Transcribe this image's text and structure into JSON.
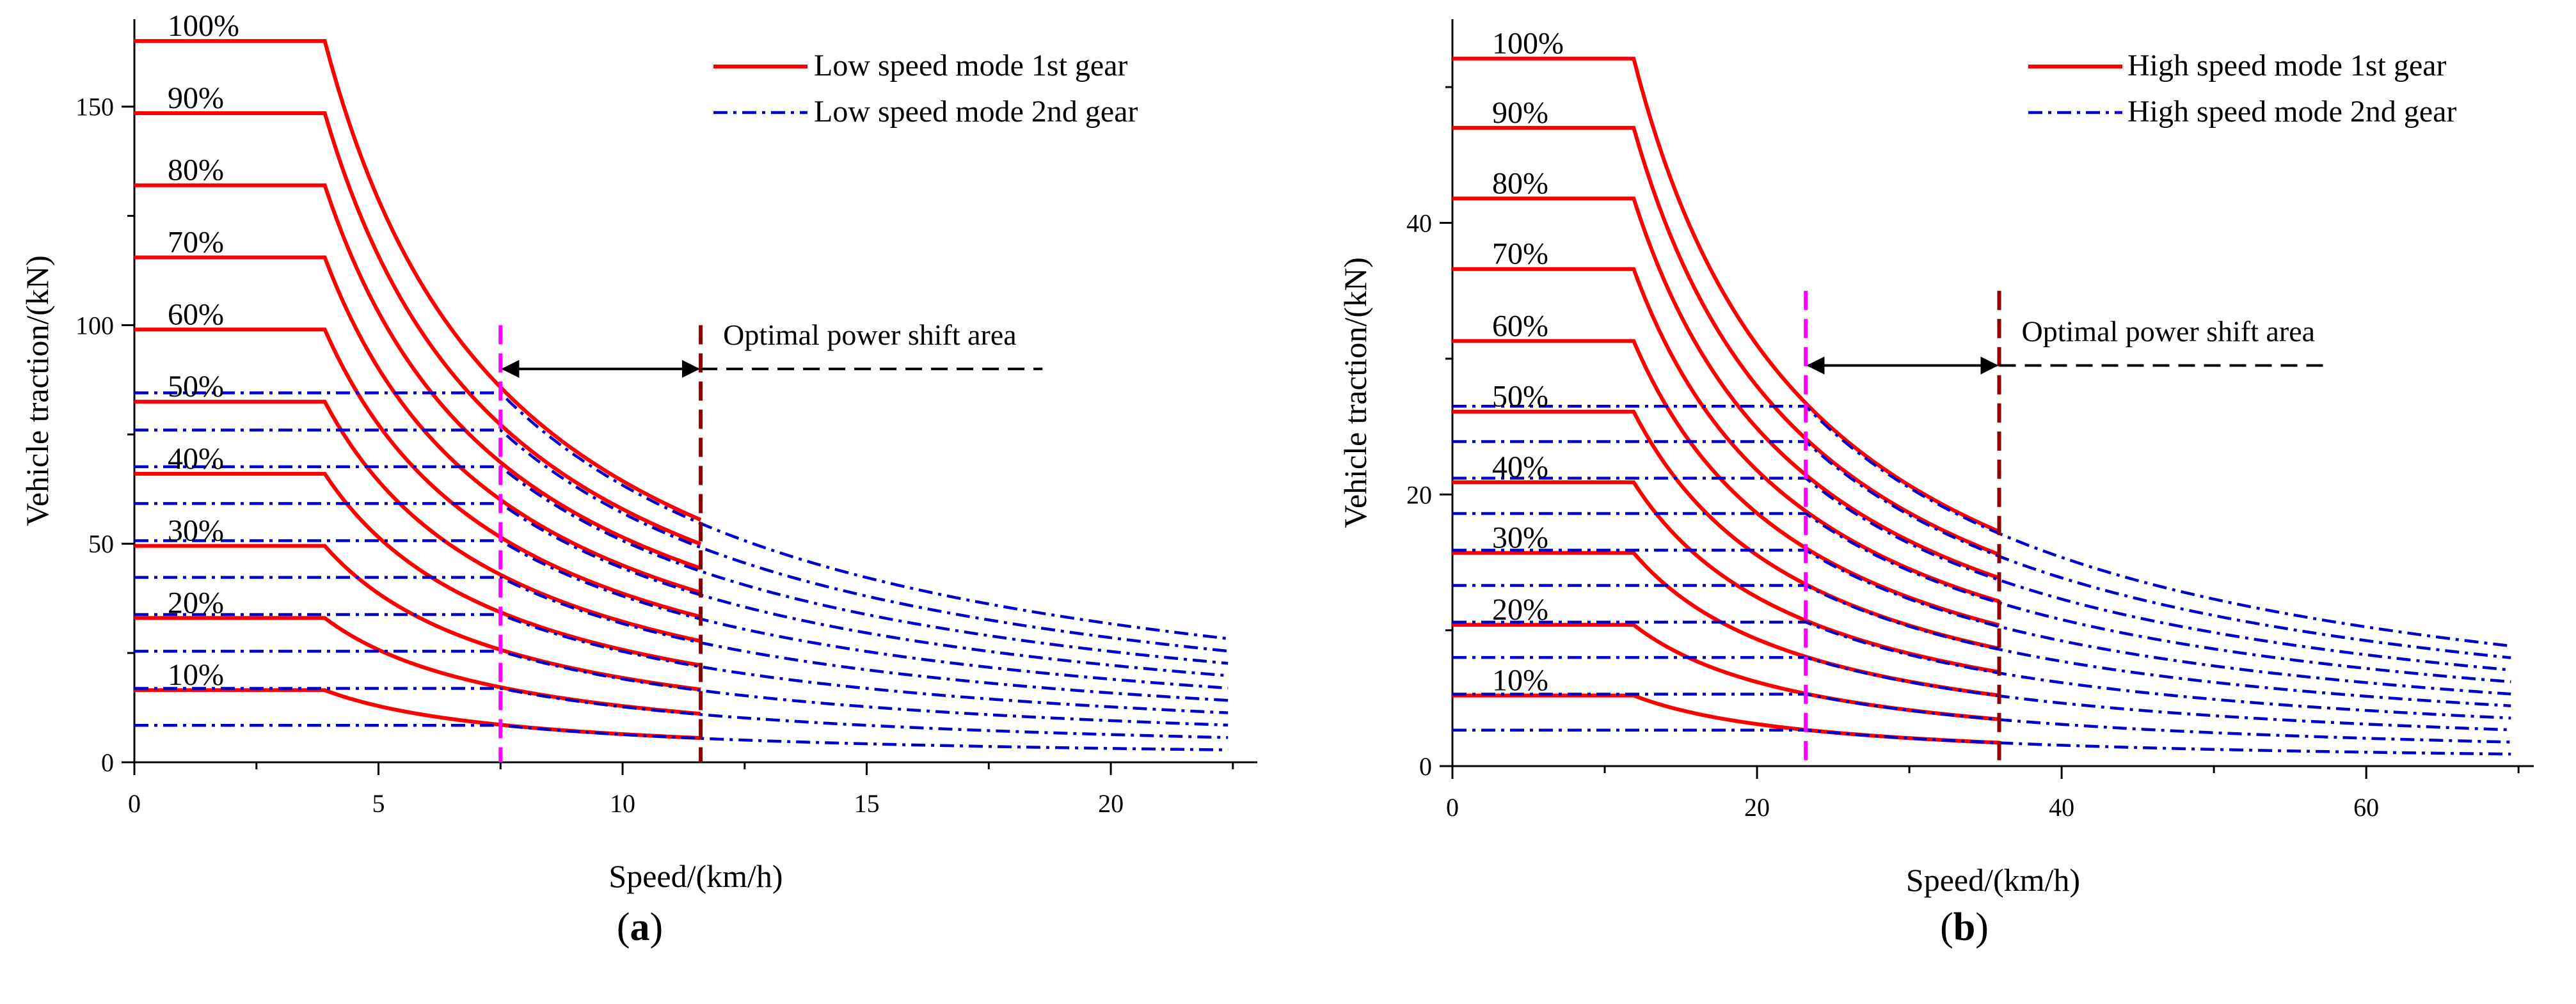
{
  "chart_data": [
    {
      "type": "line",
      "panel_label": "(a)",
      "panel_letter": "a",
      "xlabel": "Speed/(km/h)",
      "ylabel": "Vehicle traction/(kN)",
      "xlim": [
        0,
        23
      ],
      "ylim": [
        0,
        170
      ],
      "xticks": [
        0,
        5,
        10,
        15,
        20
      ],
      "yticks": [
        0,
        50,
        100,
        150
      ],
      "throttle_labels": [
        "100%",
        "90%",
        "80%",
        "70%",
        "60%",
        "50%",
        "40%",
        "30%",
        "20%",
        "10%"
      ],
      "legend": [
        "Low speed mode 1st gear",
        "Low speed mode 2nd gear"
      ],
      "series": [
        {
          "name": "Low speed mode 1st gear",
          "gear": 1,
          "color": "#ff0000",
          "style": "solid",
          "flat_end": 3.9,
          "x_end": 11.6,
          "max_traction": [
            165,
            148.5,
            132,
            115.5,
            99,
            82.5,
            66,
            49.5,
            33,
            16.5
          ]
        },
        {
          "name": "Low speed mode 2nd gear",
          "gear": 2,
          "color": "#0000cc",
          "style": "dashdot",
          "x_start": 0,
          "flat_end": 7.5,
          "x_end": 22.4,
          "max_traction": [
            84.5,
            76,
            67.6,
            59.2,
            50.7,
            42.3,
            33.8,
            25.4,
            16.9,
            8.45
          ]
        }
      ],
      "annotation": {
        "text": "Optimal power shift area",
        "x_start": 7.5,
        "x_end": 11.6,
        "y": 90,
        "dash_end": 18.6
      },
      "vlines": [
        {
          "x": 7.5,
          "color": "#ff00ff",
          "y_top": 100
        },
        {
          "x": 11.6,
          "color": "#8b0000",
          "y_top": 100
        }
      ],
      "legend_position": "top-right"
    },
    {
      "type": "line",
      "panel_label": "(b)",
      "panel_letter": "b",
      "xlabel": "Speed/(km/h)",
      "ylabel": "Vehicle traction/(kN)",
      "xlim": [
        0,
        71
      ],
      "ylim": [
        0,
        55
      ],
      "xticks": [
        0,
        20,
        40,
        60
      ],
      "yticks": [
        0,
        20,
        40
      ],
      "throttle_labels": [
        "100%",
        "90%",
        "80%",
        "70%",
        "60%",
        "50%",
        "40%",
        "30%",
        "20%",
        "10%"
      ],
      "legend": [
        "High speed mode 1st gear",
        "High speed mode 2nd gear"
      ],
      "series": [
        {
          "name": "High speed mode 1st gear",
          "gear": 1,
          "color": "#ff0000",
          "style": "solid",
          "flat_end": 11.9,
          "x_end": 35.9,
          "max_traction": [
            52.1,
            47,
            41.8,
            36.6,
            31.3,
            26.1,
            20.9,
            15.7,
            10.4,
            5.2
          ]
        },
        {
          "name": "High speed mode 2nd gear",
          "gear": 2,
          "color": "#0000cc",
          "style": "dashdot",
          "x_start": 0,
          "flat_end": 23.2,
          "x_end": 69.5,
          "max_traction": [
            26.5,
            23.9,
            21.2,
            18.6,
            15.9,
            13.3,
            10.6,
            8,
            5.3,
            2.65
          ]
        }
      ],
      "annotation": {
        "text": "Optimal power shift area",
        "x_start": 23.2,
        "x_end": 35.9,
        "y": 29.5,
        "dash_end": 57.5
      },
      "vlines": [
        {
          "x": 23.2,
          "color": "#ff00ff",
          "y_top": 35
        },
        {
          "x": 35.9,
          "color": "#8b0000",
          "y_top": 35
        }
      ],
      "legend_position": "top-right"
    }
  ]
}
